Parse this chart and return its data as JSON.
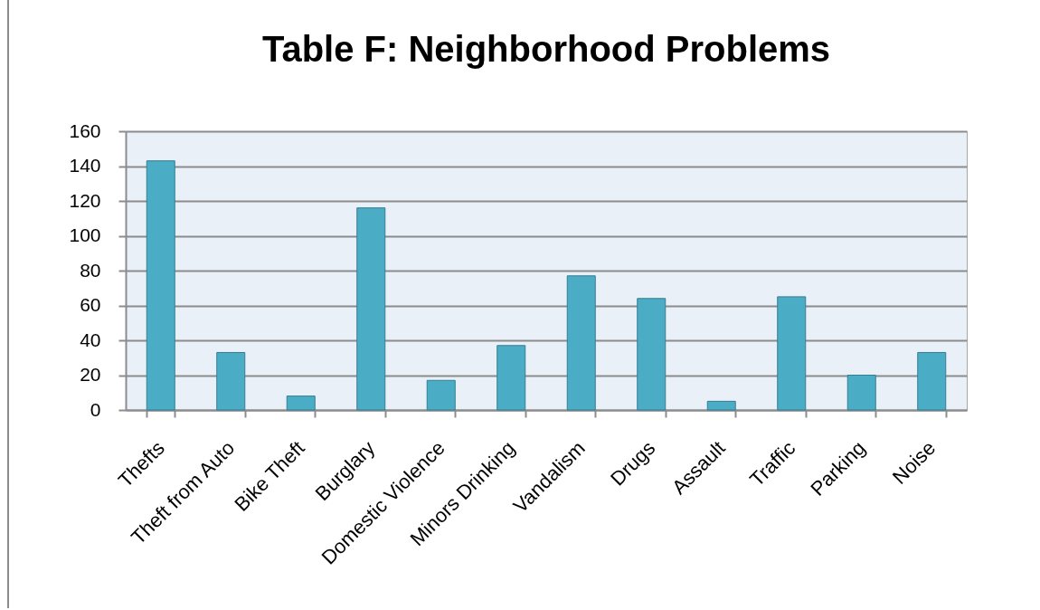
{
  "chart_data": {
    "type": "bar",
    "title": "Table F: Neighborhood Problems",
    "categories": [
      "Thefts",
      "Theft from Auto",
      "Bike Theft",
      "Burglary",
      "Domestic Violence",
      "Minors Drinking",
      "Vandalism",
      "Drugs",
      "Assault",
      "Traffic",
      "Parking",
      "Noise"
    ],
    "values": [
      143,
      33,
      8,
      116,
      17,
      37,
      77,
      64,
      5,
      65,
      20,
      33
    ],
    "color": "#4bacc6",
    "ylim": [
      0,
      160
    ],
    "yticks": [
      0,
      20,
      40,
      60,
      80,
      100,
      120,
      140,
      160
    ],
    "grid": "y"
  }
}
